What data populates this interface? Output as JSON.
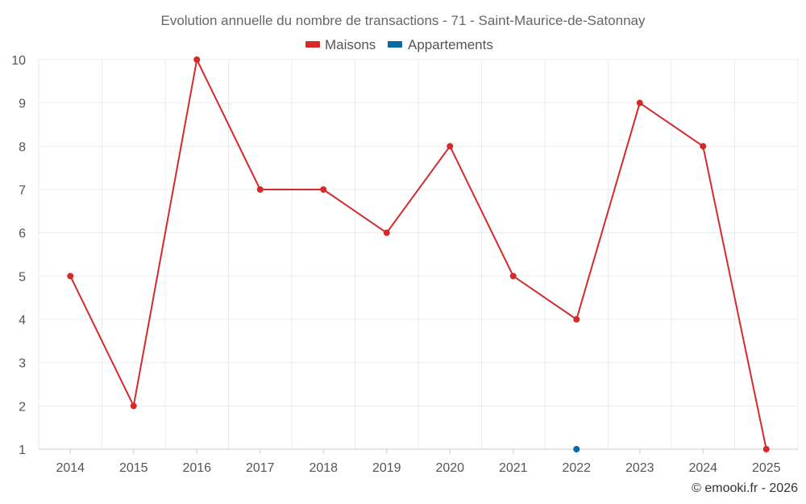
{
  "chart_data": {
    "type": "line",
    "title": "Evolution annuelle du nombre de transactions - 71 - Saint-Maurice-de-Satonnay",
    "categories": [
      "2014",
      "2015",
      "2016",
      "2017",
      "2018",
      "2019",
      "2020",
      "2021",
      "2022",
      "2023",
      "2024",
      "2025"
    ],
    "ylim": [
      1,
      10
    ],
    "yticks": [
      1,
      2,
      3,
      4,
      5,
      6,
      7,
      8,
      9,
      10
    ],
    "grid": true,
    "legend_position": "top-center",
    "series": [
      {
        "name": "Maisons",
        "color": "#d42a2a",
        "values": [
          5,
          2,
          10,
          7,
          7,
          6,
          8,
          5,
          4,
          9,
          8,
          1
        ]
      },
      {
        "name": "Appartements",
        "color": "#0a6aa3",
        "values": [
          null,
          null,
          null,
          null,
          null,
          null,
          null,
          null,
          1,
          null,
          null,
          null
        ]
      }
    ]
  },
  "credit": "© emooki.fr - 2026"
}
